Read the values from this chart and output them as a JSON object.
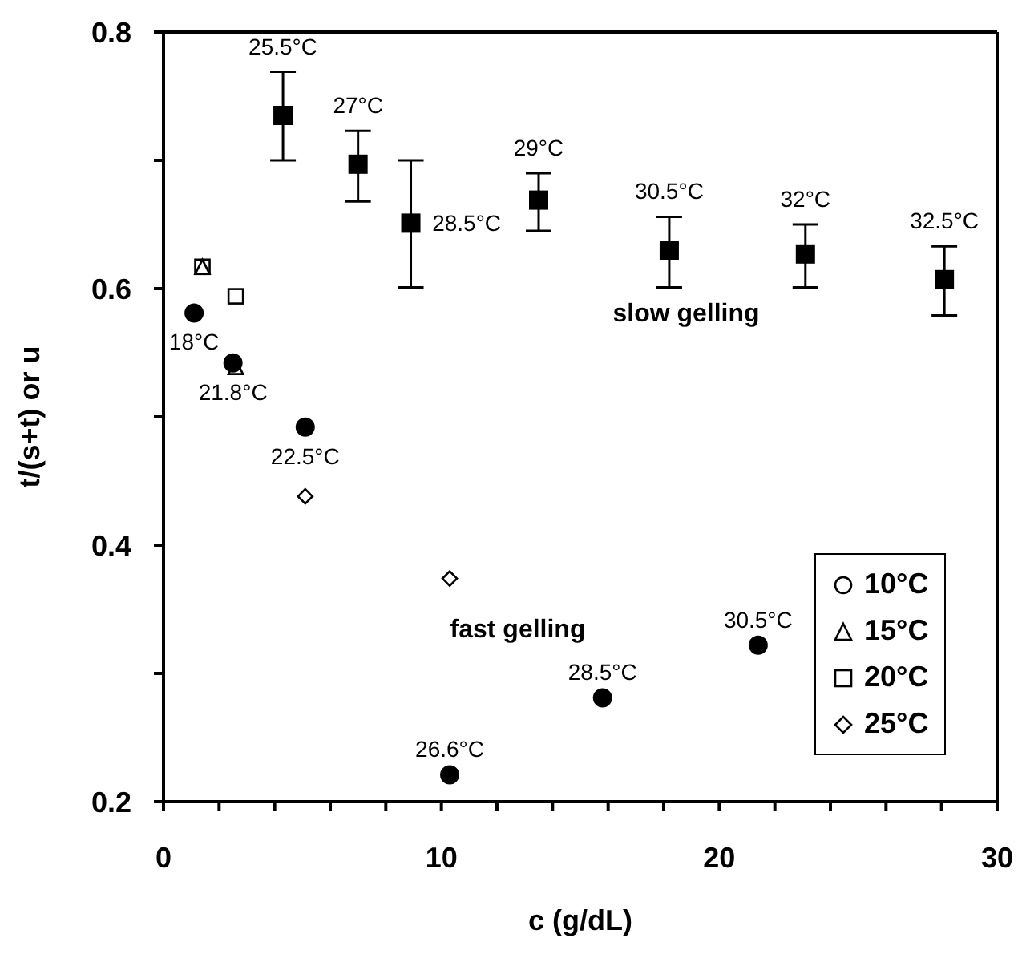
{
  "chart_data": {
    "type": "scatter",
    "xlabel": "c (g/dL)",
    "ylabel": "t/(s+t) or u",
    "xlim": [
      0,
      30
    ],
    "ylim": [
      0.2,
      0.8
    ],
    "xticks": [
      0,
      {
        "value": 2,
        "label": null
      },
      {
        "value": 4,
        "label": null
      },
      {
        "value": 6,
        "label": null
      },
      {
        "value": 8,
        "label": null
      },
      10,
      {
        "value": 12,
        "label": null
      },
      {
        "value": 14,
        "label": null
      },
      {
        "value": 16,
        "label": null
      },
      {
        "value": 18,
        "label": null
      },
      20,
      {
        "value": 22,
        "label": null
      },
      {
        "value": 24,
        "label": null
      },
      {
        "value": 26,
        "label": null
      },
      {
        "value": 28,
        "label": null
      },
      30
    ],
    "yticks": [
      0.2,
      {
        "value": 0.3,
        "label": null
      },
      0.4,
      {
        "value": 0.5,
        "label": null
      },
      0.6,
      {
        "value": 0.7,
        "label": null
      },
      0.8
    ],
    "legend": "bottom right",
    "series": [
      {
        "color": "#000000",
        "marker": "square",
        "x": [
          4.3,
          7.0,
          8.9,
          13.5,
          18.2,
          23.1,
          28.1
        ],
        "values": [
          0.735,
          0.697,
          0.651,
          0.669,
          0.63,
          0.627,
          0.607
        ],
        "errors": [
          [
            0.7,
            0.769
          ],
          [
            0.668,
            0.723
          ],
          [
            0.601,
            0.7
          ],
          [
            0.645,
            0.69
          ],
          [
            0.601,
            0.656
          ],
          [
            0.601,
            0.65
          ],
          [
            0.579,
            0.633
          ]
        ]
      },
      {
        "color": "#000000",
        "marker": "circle",
        "x": [
          1.1,
          2.5,
          5.1,
          10.3,
          15.8,
          21.4
        ],
        "values": [
          0.581,
          0.542,
          0.492,
          0.221,
          0.281,
          0.322
        ]
      },
      {
        "name": "10°C",
        "color": "#000000",
        "marker": "circle"
      },
      {
        "name": "15°C",
        "color": "#000000",
        "marker": "triangle",
        "x": [
          1.4,
          2.6
        ],
        "values": [
          0.617,
          0.539
        ]
      },
      {
        "name": "20°C",
        "color": "#000000",
        "marker": "square",
        "x": [
          1.4,
          2.6
        ],
        "values": [
          0.617,
          0.594
        ]
      },
      {
        "name": "25°C",
        "color": "#000000",
        "marker": "diamond",
        "x": [
          5.1,
          10.3
        ],
        "values": [
          0.438,
          0.374
        ]
      }
    ],
    "annotations": [
      {
        "text": "25.5°C",
        "x": 4.3,
        "y": 0.735
      },
      {
        "text": "27°C",
        "x": 7.0,
        "y": 0.697
      },
      {
        "text": "28.5°C",
        "x": 8.9,
        "y": 0.651
      },
      {
        "text": "29°C",
        "x": 13.5,
        "y": 0.669
      },
      {
        "text": "30.5°C",
        "x": 18.2,
        "y": 0.63
      },
      {
        "text": "32°C",
        "x": 23.1,
        "y": 0.627
      },
      {
        "text": "32.5°C",
        "x": 28.1,
        "y": 0.607
      },
      "slow gelling",
      {
        "text": "18°C",
        "x": 1.1,
        "y": 0.581
      },
      {
        "text": "21.8°C",
        "x": 2.5,
        "y": 0.542
      },
      {
        "text": "22.5°C",
        "x": 5.1,
        "y": 0.492
      },
      "fast gelling",
      {
        "text": "26.6°C",
        "x": 10.3,
        "y": 0.221
      },
      {
        "text": "28.5°C",
        "x": 15.8,
        "y": 0.281
      },
      {
        "text": "30.5°C",
        "x": 21.4,
        "y": 0.322
      }
    ]
  }
}
